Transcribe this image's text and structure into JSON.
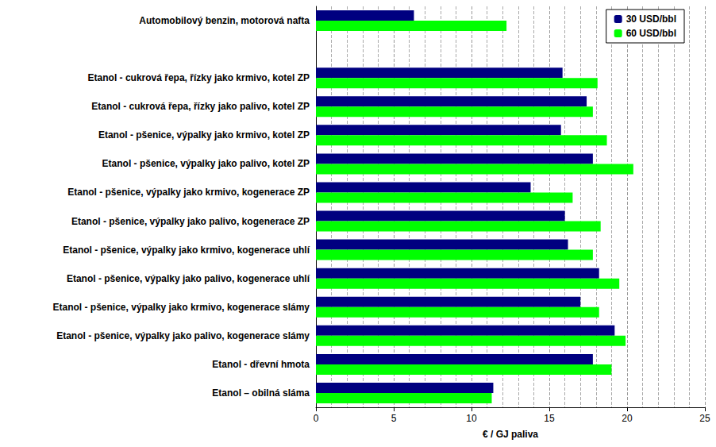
{
  "chart_data": {
    "type": "bar",
    "orientation": "horizontal",
    "categories": [
      "Automobilový benzin, motorová nafta",
      null,
      "Etanol - cukrová řepa, řízky jako krmivo, kotel ZP",
      "Etanol - cukrová řepa, řízky jako palivo, kotel ZP",
      "Etanol - pšenice, výpalky jako krmivo, kotel ZP",
      "Etanol - pšenice, výpalky jako palivo, kotel ZP",
      "Etanol - pšenice, výpalky jako krmivo, kogenerace ZP",
      "Etanol - pšenice, výpalky jako palivo, kogenerace ZP",
      "Etanol - pšenice, výpalky jako krmivo, kogenerace uhlí",
      "Etanol - pšenice, výpalky jako palivo, kogenerace uhlí",
      "Etanol - pšenice, výpalky jako krmivo, kogenerace slámy",
      "Etanol - pšenice, výpalky jako palivo, kogenerace slámy",
      "Etanol - dřevní hmota",
      "Etanol – obilná sláma"
    ],
    "series": [
      {
        "name": "30 USD/bbl",
        "color": "#000080",
        "values": [
          6.3,
          null,
          15.85,
          17.4,
          15.75,
          17.8,
          13.8,
          16.0,
          16.2,
          18.2,
          17.0,
          19.2,
          17.8,
          11.4
        ]
      },
      {
        "name": "60 USD/bbl",
        "color": "#00ff00",
        "values": [
          12.25,
          null,
          18.1,
          17.8,
          18.7,
          20.4,
          16.5,
          18.3,
          17.8,
          19.5,
          18.2,
          19.9,
          19.0,
          11.3
        ]
      }
    ],
    "xlabel": "€ / GJ paliva",
    "xlim": [
      0,
      25
    ],
    "xticks": [
      0,
      5,
      10,
      15,
      20,
      25
    ],
    "grid": true,
    "legend": "upper right"
  }
}
